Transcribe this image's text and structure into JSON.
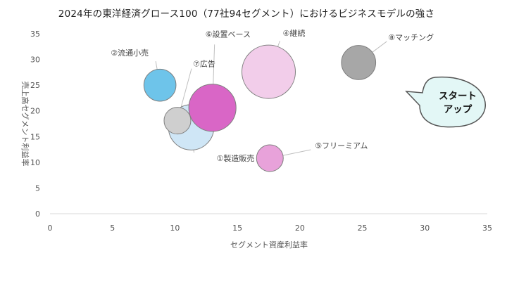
{
  "chart_data": {
    "type": "scatter",
    "subtype": "bubble",
    "title": "2024年の東洋経済グロース100（77社94セグメント）におけるビジネスモデルの強さ",
    "xlabel": "セグメント資産利益率",
    "ylabel": "売上高セグメント利益率",
    "xlim": [
      0,
      35
    ],
    "ylim": [
      0,
      35
    ],
    "xticks": [
      0,
      5,
      10,
      15,
      20,
      25,
      30,
      35
    ],
    "yticks": [
      0,
      5,
      10,
      15,
      20,
      25,
      30,
      35
    ],
    "grid": false,
    "legend": "none",
    "points": [
      {
        "label": "①製造販売",
        "x": 11.3,
        "y": 16.8,
        "size": 0.72,
        "color": "#cfe6f6"
      },
      {
        "label": "②流通小売",
        "x": 8.8,
        "y": 25.0,
        "size": 0.36,
        "color": "#6ec4ea"
      },
      {
        "label": "④継続",
        "x": 17.5,
        "y": 27.6,
        "size": 1.0,
        "color": "#f2cdea"
      },
      {
        "label": "⑤フリーミアム",
        "x": 17.6,
        "y": 10.8,
        "size": 0.25,
        "color": "#e8a2da"
      },
      {
        "label": "⑥設置ベース",
        "x": 13.0,
        "y": 20.6,
        "size": 0.78,
        "color": "#d966c6"
      },
      {
        "label": "⑦広告",
        "x": 10.2,
        "y": 18.1,
        "size": 0.25,
        "color": "#cfcfcf"
      },
      {
        "label": "⑧マッチング",
        "x": 24.7,
        "y": 29.4,
        "size": 0.41,
        "color": "#a7a7a7"
      }
    ],
    "callout": {
      "text_line1": "スタート",
      "text_line2": "アップ",
      "fill": "#e3f7f6",
      "stroke": "#555555"
    }
  }
}
